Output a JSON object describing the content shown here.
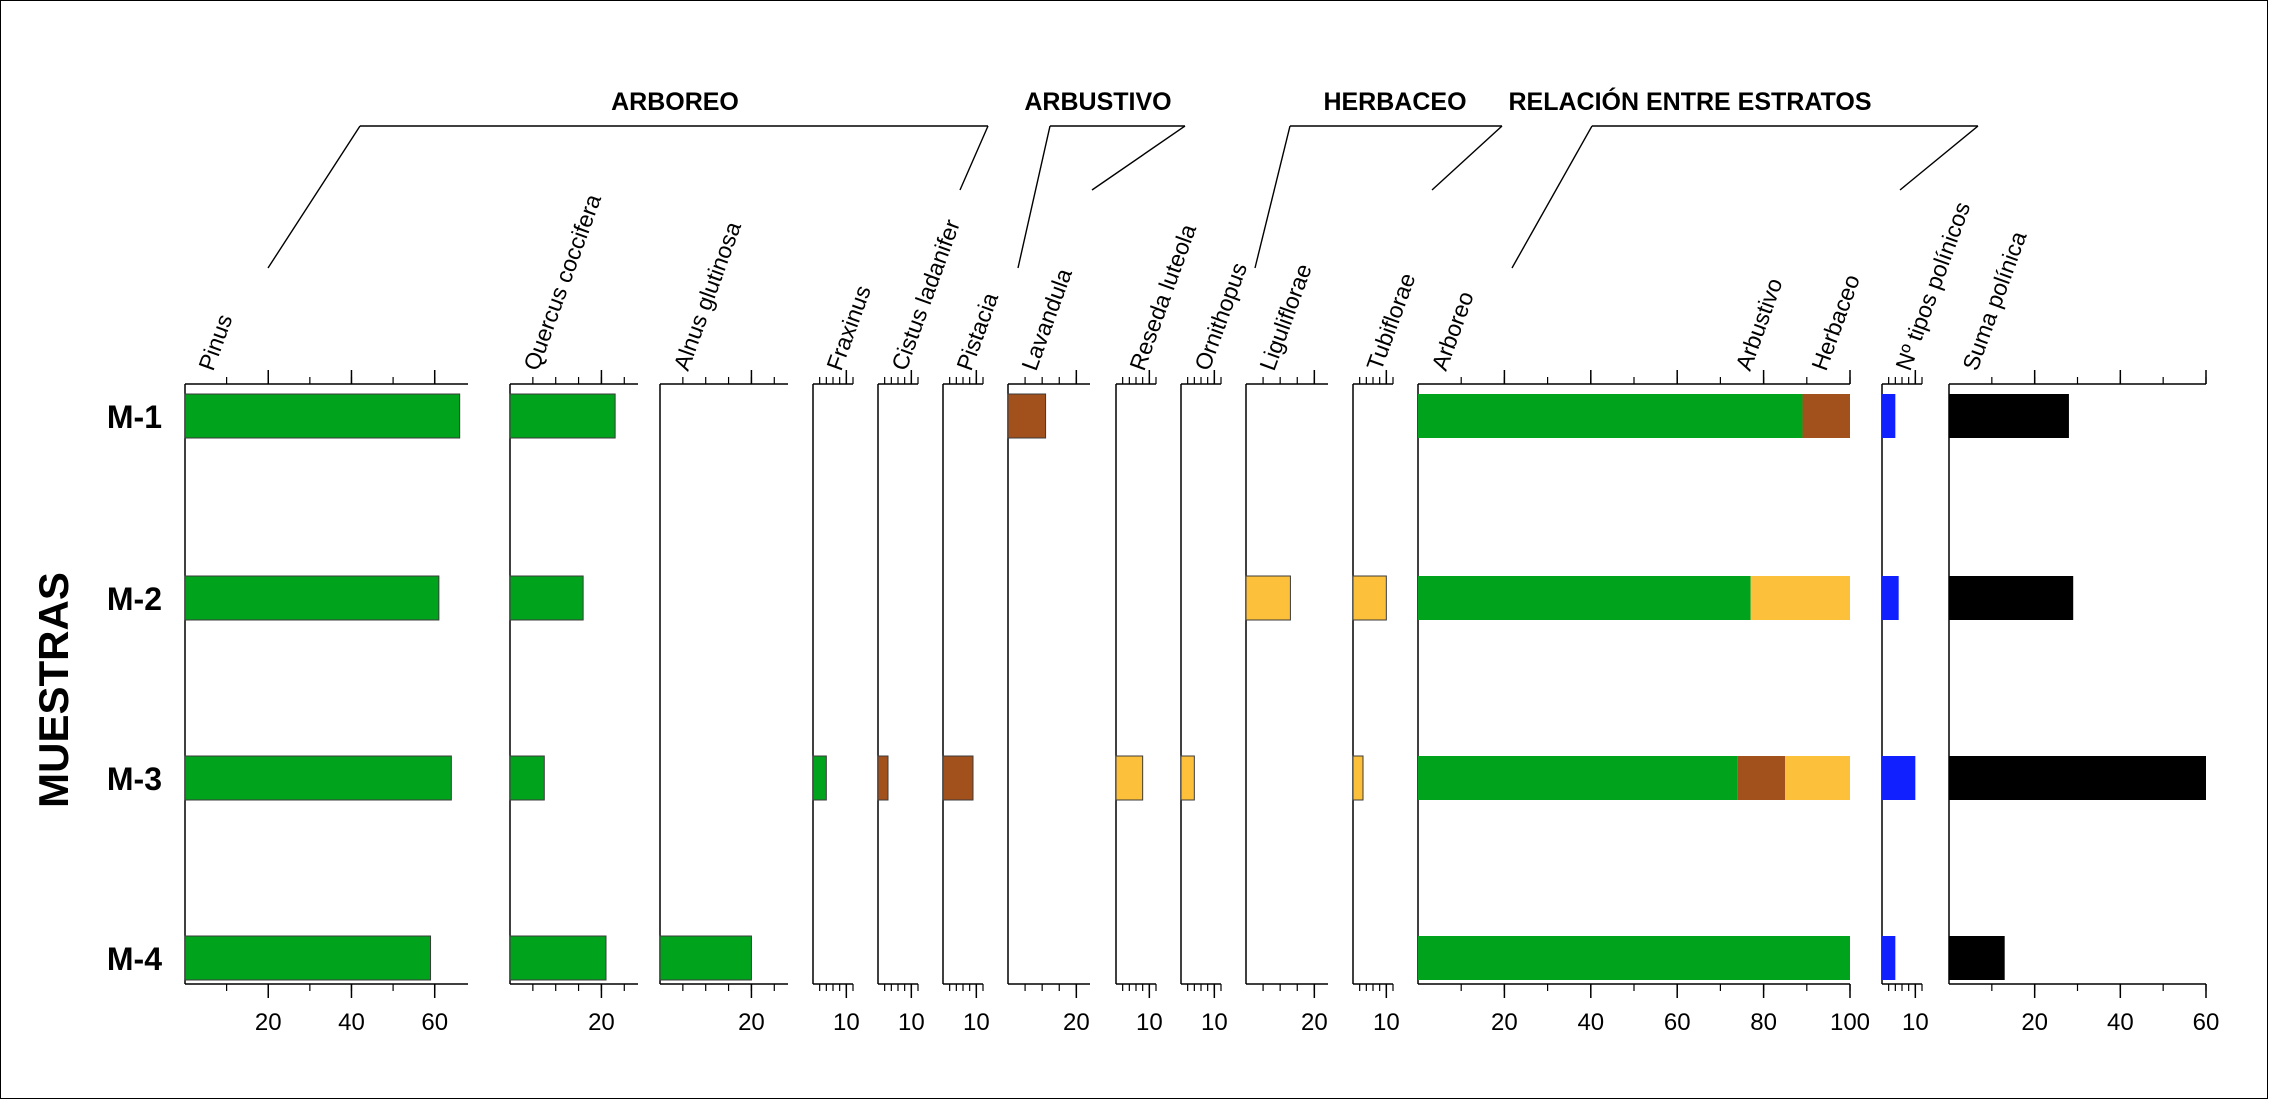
{
  "chart_data": {
    "type": "bar",
    "ylabel": "MUESTRAS",
    "samples": [
      "M-1",
      "M-2",
      "M-3",
      "M-4"
    ],
    "colors": {
      "arboreo": "#00a31c",
      "arbustivo": "#a3511c",
      "herbaceo": "#fcc03a",
      "tipos": "#1020ff",
      "suma": "#000000"
    },
    "groups": [
      {
        "id": "arboreo",
        "label": "ARBOREO"
      },
      {
        "id": "arbustivo",
        "label": "ARBUSTIVO"
      },
      {
        "id": "herbaceo",
        "label": "HERBACEO"
      },
      {
        "id": "relacion",
        "label": "RELACIÓN ENTRE ESTRATOS"
      }
    ],
    "panels": [
      {
        "label": "Pinus",
        "group": "arboreo",
        "color": "#00a31c",
        "xlim": [
          0,
          68
        ],
        "ticks": [
          20,
          40,
          60
        ],
        "values": [
          66,
          61,
          64,
          59
        ]
      },
      {
        "label": "Quercus coccifera",
        "group": "arboreo",
        "color": "#00a31c",
        "xlim": [
          0,
          28
        ],
        "ticks": [
          20
        ],
        "values": [
          23,
          16,
          7.5,
          21
        ]
      },
      {
        "label": "Alnus glutinosa",
        "group": "arboreo",
        "color": "#00a31c",
        "xlim": [
          0,
          28
        ],
        "ticks": [
          20
        ],
        "values": [
          0,
          0,
          0,
          20
        ]
      },
      {
        "label": "Fraxinus",
        "group": "arboreo",
        "color": "#00a31c",
        "xlim": [
          0,
          12
        ],
        "ticks": [
          10
        ],
        "values": [
          0,
          0,
          4,
          0
        ]
      },
      {
        "label": "Cistus ladanifer",
        "group": "arbustivo",
        "color": "#a3511c",
        "xlim": [
          0,
          12
        ],
        "ticks": [
          10
        ],
        "values": [
          0,
          0,
          3,
          0
        ]
      },
      {
        "label": "Pistacia",
        "group": "arbustivo",
        "color": "#a3511c",
        "xlim": [
          0,
          12
        ],
        "ticks": [
          10
        ],
        "values": [
          0,
          0,
          9,
          0
        ]
      },
      {
        "label": "Lavandula",
        "group": "arbustivo",
        "color": "#a3511c",
        "xlim": [
          0,
          24
        ],
        "ticks": [
          20
        ],
        "values": [
          11,
          0,
          0,
          0
        ]
      },
      {
        "label": "Reseda luteola",
        "group": "herbaceo",
        "color": "#fcc03a",
        "xlim": [
          0,
          12
        ],
        "ticks": [
          10
        ],
        "values": [
          0,
          0,
          8,
          0
        ]
      },
      {
        "label": "Ornithopus",
        "group": "herbaceo",
        "color": "#fcc03a",
        "xlim": [
          0,
          12
        ],
        "ticks": [
          10
        ],
        "values": [
          0,
          0,
          4,
          0
        ]
      },
      {
        "label": "Liguliflorae",
        "group": "herbaceo",
        "color": "#fcc03a",
        "xlim": [
          0,
          24
        ],
        "ticks": [
          20
        ],
        "values": [
          0,
          13,
          0,
          0
        ]
      },
      {
        "label": "Tubiflorae",
        "group": "herbaceo",
        "color": "#fcc03a",
        "xlim": [
          0,
          12
        ],
        "ticks": [
          10
        ],
        "values": [
          0,
          10,
          3,
          0
        ]
      }
    ],
    "relation": {
      "labels": [
        "Arboreo",
        "Arbustivo",
        "Herbaceo"
      ],
      "xlim": [
        0,
        100
      ],
      "ticks": [
        20,
        40,
        60,
        80,
        100
      ],
      "stacks": [
        {
          "arboreo": 89,
          "arbustivo": 11,
          "herbaceo": 0
        },
        {
          "arboreo": 77,
          "arbustivo": 0,
          "herbaceo": 23
        },
        {
          "arboreo": 74,
          "arbustivo": 11,
          "herbaceo": 15
        },
        {
          "arboreo": 100,
          "arbustivo": 0,
          "herbaceo": 0
        }
      ]
    },
    "tipos": {
      "label": "Nº tipos polínicos",
      "color": "#1020ff",
      "xlim": [
        0,
        12
      ],
      "ticks": [
        10
      ],
      "values": [
        4,
        5,
        10,
        4
      ]
    },
    "suma": {
      "label": "Suma polínica",
      "color": "#000000",
      "xlim": [
        0,
        60
      ],
      "ticks": [
        20,
        40,
        60
      ],
      "values": [
        28,
        29,
        60,
        13
      ]
    }
  }
}
